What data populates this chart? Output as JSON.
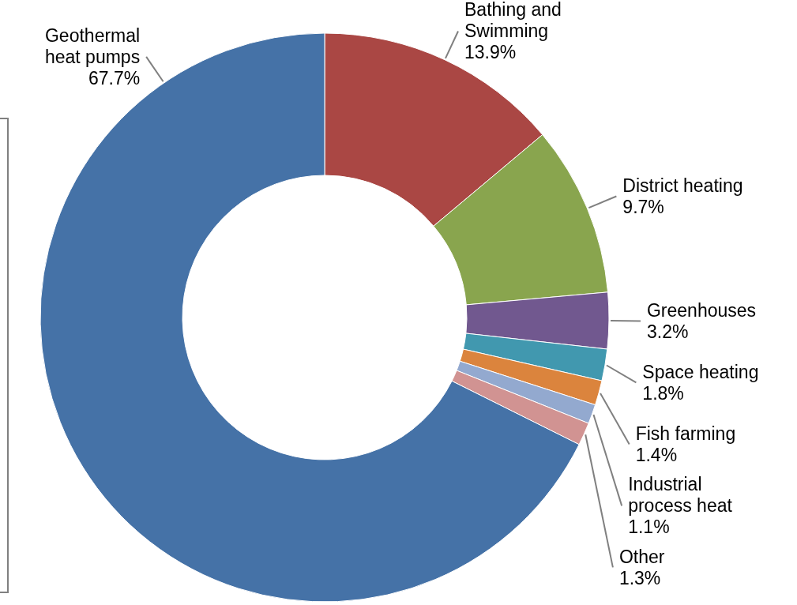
{
  "chart_data": {
    "type": "donut",
    "categories": [
      "Bathing and Swimming",
      "District heating",
      "Greenhouses",
      "Space heating",
      "Fish farming",
      "Industrial process heat",
      "Other",
      "Geothermal heat pumps"
    ],
    "values": [
      13.9,
      9.7,
      3.2,
      1.8,
      1.4,
      1.1,
      1.3,
      67.7
    ],
    "value_labels": [
      "13.9%",
      "9.7%",
      "3.2%",
      "1.8%",
      "1.4%",
      "1.1%",
      "1.3%",
      "67.7%"
    ],
    "colors": [
      "#aa4744",
      "#89a54e",
      "#71588f",
      "#4198af",
      "#db843d",
      "#93a9cf",
      "#d19392",
      "#4572a7"
    ],
    "legend": false
  }
}
